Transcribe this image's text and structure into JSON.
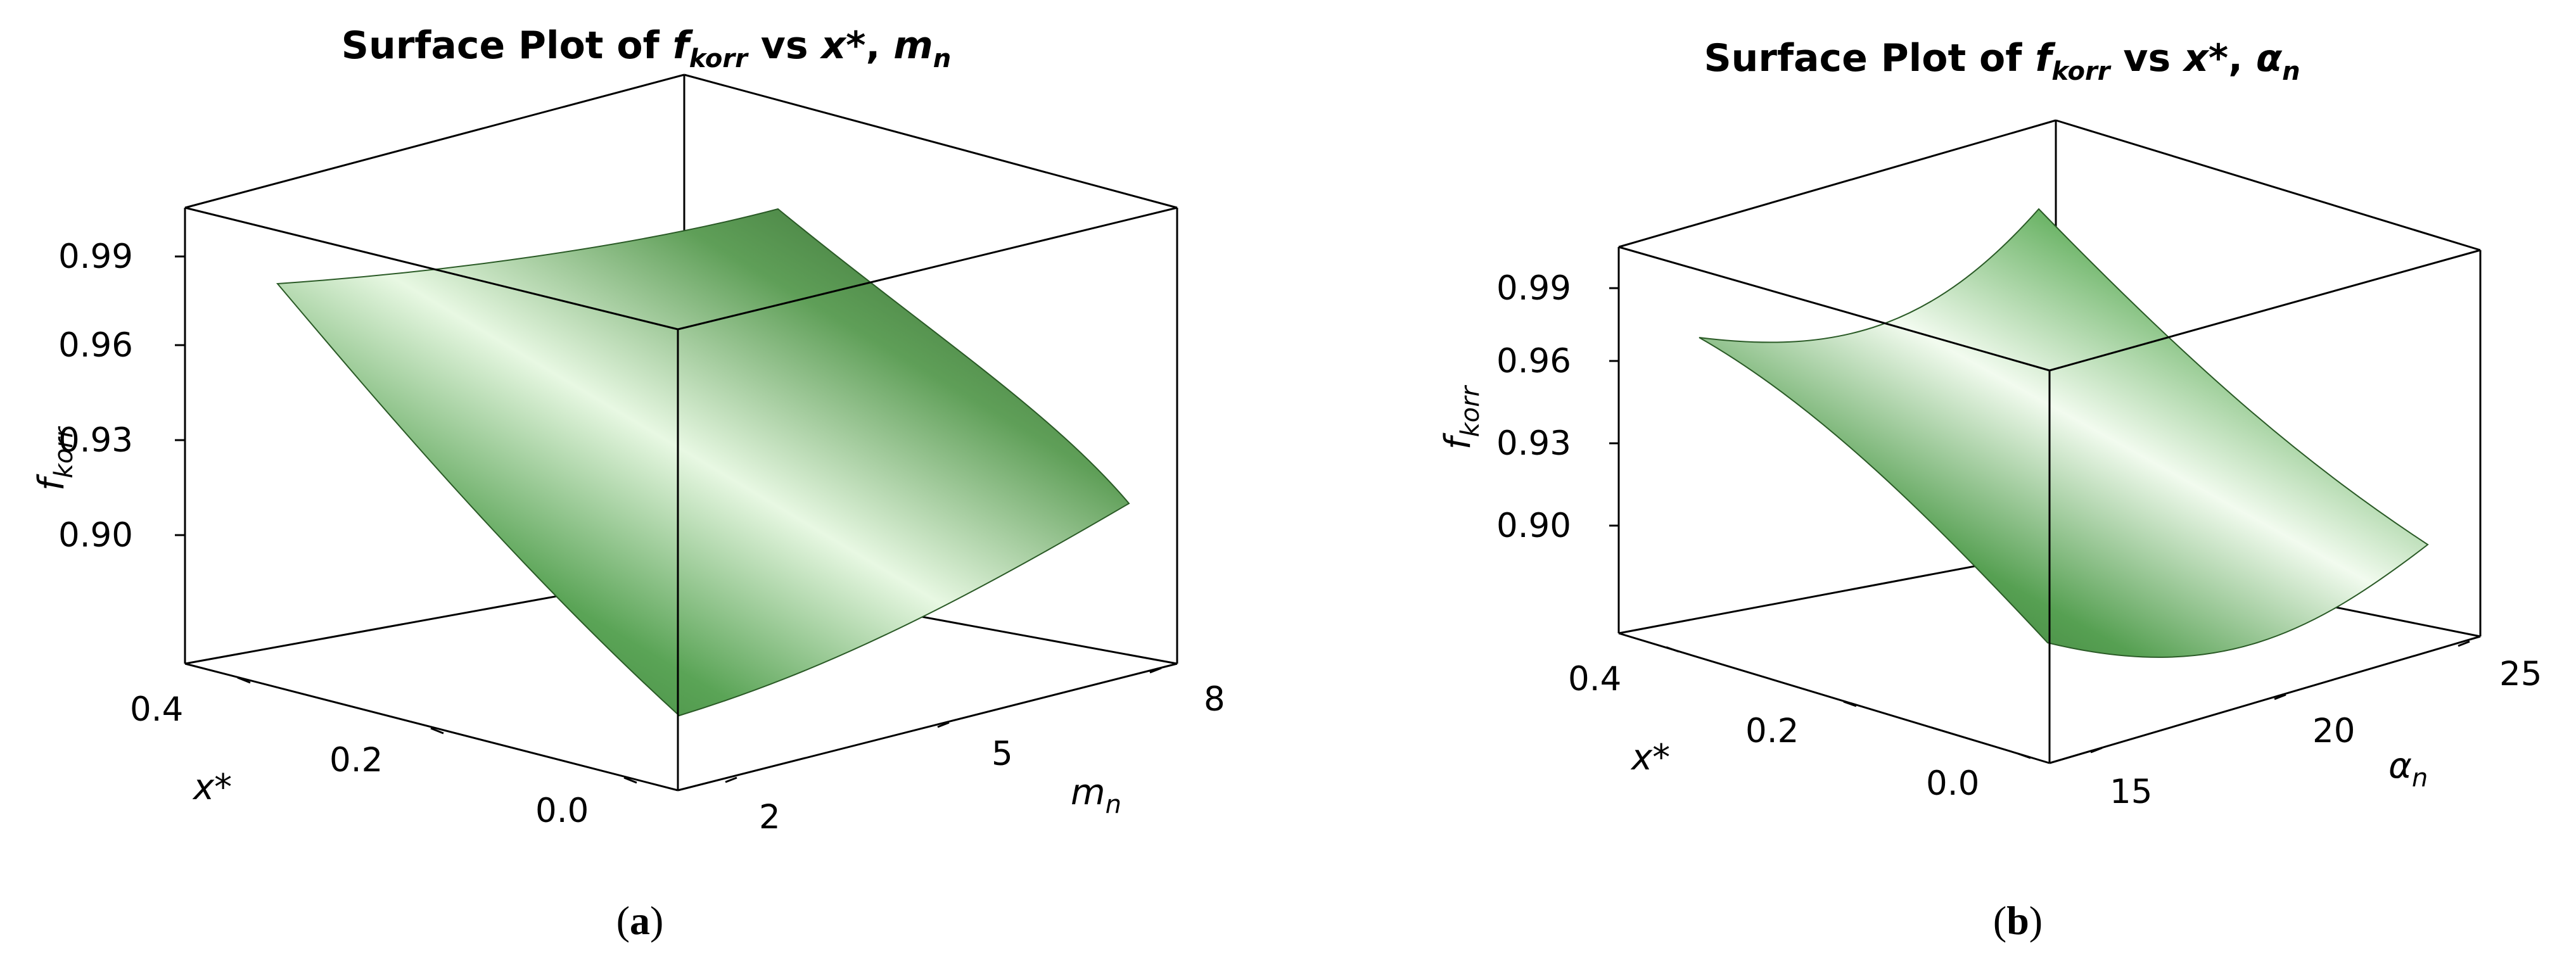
{
  "panels": [
    {
      "caption_open": "(",
      "caption_letter": "a",
      "caption_close": ")",
      "title_prefix": "Surface Plot of ",
      "title_f": "f",
      "title_f_sub": "korr",
      "title_mid": " vs ",
      "title_x": "x*",
      "title_comma": ", ",
      "title_var": "m",
      "title_var_sub": "n",
      "zlabel_main": "f",
      "zlabel_sub": "korr",
      "xlabel": "x*",
      "ylabel_main": "m",
      "ylabel_sub": "n",
      "z_ticks": [
        "0.99",
        "0.96",
        "0.93",
        "0.90"
      ],
      "x_ticks": [
        "0.4",
        "0.2",
        "0.0"
      ],
      "y_ticks": [
        "2",
        "5",
        "8"
      ]
    },
    {
      "caption_open": "(",
      "caption_letter": "b",
      "caption_close": ")",
      "title_prefix": "Surface Plot of ",
      "title_f": "f",
      "title_f_sub": "korr",
      "title_mid": " vs ",
      "title_x": "x*",
      "title_comma": ", ",
      "title_var": "α",
      "title_var_sub": "n",
      "zlabel_main": "f",
      "zlabel_sub": "korr",
      "xlabel": "x*",
      "ylabel_main": "α",
      "ylabel_sub": "n",
      "z_ticks": [
        "0.99",
        "0.96",
        "0.93",
        "0.90"
      ],
      "x_ticks": [
        "0.4",
        "0.2",
        "0.0"
      ],
      "y_ticks": [
        "15",
        "20",
        "25"
      ]
    }
  ],
  "chart_data": [
    {
      "type": "surface",
      "x_axis": "x*",
      "y_axis": "m_n",
      "z_axis": "f_korr",
      "x_range": [
        0.0,
        0.4
      ],
      "y_range": [
        2,
        8
      ],
      "z_ticks": [
        0.9,
        0.93,
        0.96,
        0.99
      ],
      "surface_color": "#4f9e4f",
      "corners": [
        {
          "x": 0.4,
          "y": 2,
          "z": 0.975
        },
        {
          "x": 0.4,
          "y": 8,
          "z": 0.99
        },
        {
          "x": 0.0,
          "y": 8,
          "z": 0.915
        },
        {
          "x": 0.0,
          "y": 2,
          "z": 0.875
        }
      ]
    },
    {
      "type": "surface",
      "x_axis": "x*",
      "y_axis": "α_n",
      "z_axis": "f_korr",
      "x_range": [
        0.0,
        0.4
      ],
      "y_range": [
        15,
        25
      ],
      "z_ticks": [
        0.9,
        0.93,
        0.96,
        0.99
      ],
      "surface_color": "#4f9e4f",
      "corners": [
        {
          "x": 0.4,
          "y": 15,
          "z": 0.965
        },
        {
          "x": 0.4,
          "y": 25,
          "z": 0.99
        },
        {
          "x": 0.0,
          "y": 25,
          "z": 0.895
        },
        {
          "x": 0.0,
          "y": 15,
          "z": 0.865
        }
      ]
    }
  ]
}
